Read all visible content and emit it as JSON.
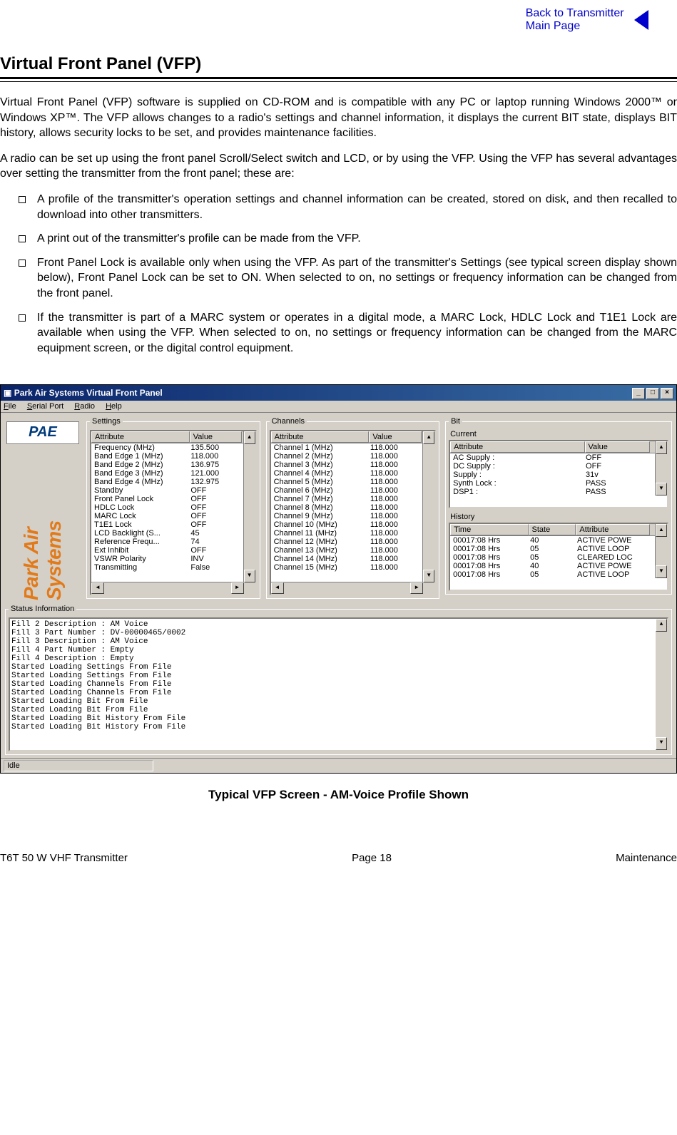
{
  "toplink": {
    "line1": "Back to Transmitter",
    "line2": "Main Page"
  },
  "heading": "Virtual Front Panel (VFP)",
  "para1": "Virtual Front Panel (VFP) software is supplied on CD-ROM and is compatible with any PC or laptop running Windows 2000™ or Windows XP™. The VFP allows changes to a radio's settings and channel information, it displays the current BIT state, displays BIT history, allows security locks to be set, and provides maintenance facilities.",
  "para2": "A radio can be set up using the front panel Scroll/Select switch and LCD, or by using the VFP. Using the VFP has several advantages over setting the transmitter from the front panel; these are:",
  "bullets": [
    "A profile of the transmitter's operation settings and channel information can be created, stored on disk, and then recalled to download into other transmitters.",
    "A print out of the transmitter's profile can be made from the VFP.",
    "Front Panel Lock is available only when using the VFP. As part of the transmitter's Settings (see typical screen display shown below), Front Panel Lock can be set to ON. When selected to on, no settings or frequency information can be changed from the front panel.",
    "If the transmitter is part of a MARC system or operates in a digital mode, a MARC Lock, HDLC Lock and T1E1 Lock are available when using the VFP. When selected to on, no settings or frequency information can be changed from the MARC equipment screen, or the digital control equipment."
  ],
  "window": {
    "title": "Park Air Systems Virtual Front Panel",
    "menu": [
      "File",
      "Serial Port",
      "Radio",
      "Help"
    ],
    "logo": "PAE",
    "brand": "Park Air Systems",
    "settings_legend": "Settings",
    "channels_legend": "Channels",
    "bit_legend": "Bit",
    "current_legend": "Current",
    "history_legend": "History",
    "status_legend": "Status Information",
    "hdrs": {
      "attr": "Attribute",
      "val": "Value",
      "time": "Time",
      "state": "State"
    },
    "settings": [
      {
        "a": "Frequency (MHz)",
        "v": "135.500"
      },
      {
        "a": "Band Edge 1 (MHz)",
        "v": "118.000"
      },
      {
        "a": "Band Edge 2 (MHz)",
        "v": "136.975"
      },
      {
        "a": "Band Edge 3 (MHz)",
        "v": "121.000"
      },
      {
        "a": "Band Edge 4 (MHz)",
        "v": "132.975"
      },
      {
        "a": "Standby",
        "v": "OFF"
      },
      {
        "a": "Front Panel Lock",
        "v": "OFF"
      },
      {
        "a": "HDLC Lock",
        "v": "OFF"
      },
      {
        "a": "MARC Lock",
        "v": "OFF"
      },
      {
        "a": "T1E1 Lock",
        "v": "OFF"
      },
      {
        "a": "LCD Backlight (S...",
        "v": "45"
      },
      {
        "a": "Reference Frequ...",
        "v": "74"
      },
      {
        "a": "Ext Inhibit",
        "v": "OFF"
      },
      {
        "a": "VSWR Polarity",
        "v": "INV"
      },
      {
        "a": "Transmitting",
        "v": "False"
      }
    ],
    "channels": [
      {
        "a": "Channel 1   (MHz)",
        "v": "118.000"
      },
      {
        "a": "Channel 2   (MHz)",
        "v": "118.000"
      },
      {
        "a": "Channel 3   (MHz)",
        "v": "118.000"
      },
      {
        "a": "Channel 4   (MHz)",
        "v": "118.000"
      },
      {
        "a": "Channel 5   (MHz)",
        "v": "118.000"
      },
      {
        "a": "Channel 6   (MHz)",
        "v": "118.000"
      },
      {
        "a": "Channel 7   (MHz)",
        "v": "118.000"
      },
      {
        "a": "Channel 8   (MHz)",
        "v": "118.000"
      },
      {
        "a": "Channel 9   (MHz)",
        "v": "118.000"
      },
      {
        "a": "Channel 10  (MHz)",
        "v": "118.000"
      },
      {
        "a": "Channel 11  (MHz)",
        "v": "118.000"
      },
      {
        "a": "Channel 12  (MHz)",
        "v": "118.000"
      },
      {
        "a": "Channel 13  (MHz)",
        "v": "118.000"
      },
      {
        "a": "Channel 14  (MHz)",
        "v": "118.000"
      },
      {
        "a": "Channel 15  (MHz)",
        "v": "118.000"
      }
    ],
    "current": [
      {
        "a": "AC Supply :",
        "v": "OFF"
      },
      {
        "a": "DC Supply :",
        "v": "OFF"
      },
      {
        "a": "Supply :",
        "v": "31v"
      },
      {
        "a": "Synth Lock :",
        "v": "PASS"
      },
      {
        "a": "DSP1 :",
        "v": "PASS"
      }
    ],
    "history": [
      {
        "t": "00017:08 Hrs",
        "s": "40",
        "a": "ACTIVE POWE"
      },
      {
        "t": "00017:08 Hrs",
        "s": "05",
        "a": "ACTIVE LOOP"
      },
      {
        "t": "00017:08 Hrs",
        "s": "05",
        "a": "CLEARED LOC"
      },
      {
        "t": "00017:08 Hrs",
        "s": "40",
        "a": "ACTIVE POWE"
      },
      {
        "t": "00017:08 Hrs",
        "s": "05",
        "a": "ACTIVE LOOP"
      }
    ],
    "status": [
      "Fill 2 Description : AM Voice",
      "Fill 3 Part Number : DV-00000465/0002",
      "Fill 3 Description : AM Voice",
      "Fill 4 Part Number : Empty",
      "Fill 4 Description : Empty",
      "Started Loading Settings From File",
      "Started Loading Settings From File",
      "Started Loading Channels From File",
      "Started Loading Channels From File",
      "Started Loading Bit From File",
      "Started Loading Bit From File",
      "Started Loading Bit History From File",
      "Started Loading Bit History From File"
    ],
    "idle": "Idle"
  },
  "caption": "Typical VFP Screen - AM-Voice Profile Shown",
  "footer": {
    "left": "T6T 50 W VHF Transmitter",
    "center": "Page 18",
    "right": "Maintenance"
  }
}
